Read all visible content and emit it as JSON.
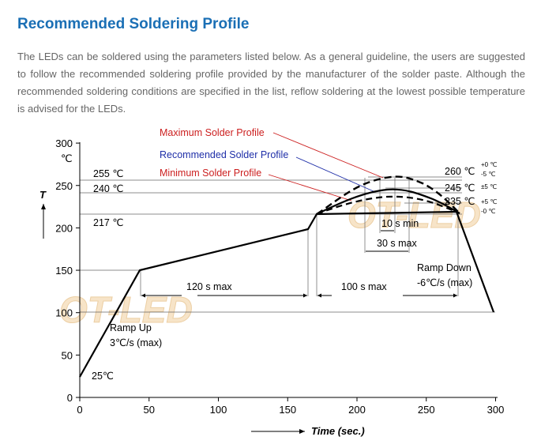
{
  "page": {
    "title": "Recommended Soldering Profile",
    "paragraph": "The LEDs can be soldered using the parameters listed below. As a general guideline, the users are suggested to follow the recommended soldering profile provided by the manufacturer of the solder paste. Although the recommended soldering conditions are specified in the list, reflow soldering at the lowest possible temperature is advised for the LEDs."
  },
  "colors": {
    "title": "#1a6fb5",
    "max_label": "#cc1f1f",
    "rec_label": "#1f2fa8",
    "min_label": "#cc1f1f"
  },
  "watermark": "OT-LED",
  "chart": {
    "y_axis_label": "T",
    "y_unit": "℃",
    "x_axis_label": "Time (sec.)",
    "x_ticks": [
      "0",
      "50",
      "100",
      "150",
      "200",
      "250",
      "300"
    ],
    "y_ticks": [
      "300",
      "250",
      "200",
      "150",
      "100",
      "50",
      "0"
    ],
    "labels": {
      "max_profile": "Maximum Solder Profile",
      "rec_profile": "Recommended Solder Profile",
      "min_profile": "Minimum Solder Profile",
      "t255": "255 ℃",
      "t240": "240 ℃",
      "t217": "217 ℃",
      "t25": "25℃",
      "t260": "260 ℃",
      "t260_plus": "+0 ℃",
      "t260_minus": "-5 ℃",
      "t245": "245 ℃",
      "t245_tol": "±5 ℃",
      "t235": "235 ℃",
      "t235_plus": "+5 ℃",
      "t235_minus": "-0 ℃",
      "ten_s_min": "10 s min",
      "thirty_s_max": "30 s max",
      "one_twenty_s_max": "120 s max",
      "hundred_s_max": "100 s max",
      "ramp_up": "Ramp Up",
      "ramp_up_rate": "3℃/s (max)",
      "ramp_down": "Ramp Down",
      "ramp_down_rate": "-6℃/s (max)"
    }
  },
  "chart_data": {
    "type": "line",
    "title": "",
    "xlabel": "Time (sec.)",
    "ylabel": "T (℃)",
    "xlim": [
      0,
      300
    ],
    "ylim": [
      0,
      300
    ],
    "x_ticks": [
      0,
      50,
      100,
      150,
      200,
      250,
      300
    ],
    "y_ticks": [
      0,
      50,
      100,
      150,
      200,
      250,
      300
    ],
    "series": [
      {
        "name": "Base profile",
        "style": "solid",
        "points": [
          [
            0,
            25
          ],
          [
            42,
            150
          ],
          [
            162,
            200
          ],
          [
            168,
            217
          ],
          [
            270,
            217
          ],
          [
            296,
            100
          ]
        ]
      },
      {
        "name": "Maximum Solder Profile",
        "style": "dashed",
        "points": [
          [
            168,
            217
          ],
          [
            188,
            240
          ],
          [
            206,
            255
          ],
          [
            218,
            260
          ],
          [
            232,
            258
          ],
          [
            250,
            245
          ],
          [
            270,
            217
          ]
        ]
      },
      {
        "name": "Recommended Solder Profile",
        "style": "solid",
        "points": [
          [
            168,
            217
          ],
          [
            190,
            232
          ],
          [
            205,
            240
          ],
          [
            218,
            245
          ],
          [
            236,
            240
          ],
          [
            270,
            217
          ]
        ]
      },
      {
        "name": "Minimum Solder Profile",
        "style": "dashed",
        "points": [
          [
            168,
            217
          ],
          [
            190,
            228
          ],
          [
            206,
            233
          ],
          [
            220,
            235
          ],
          [
            238,
            233
          ],
          [
            270,
            217
          ]
        ]
      }
    ],
    "reference_lines": [
      255,
      240,
      217,
      150,
      100
    ],
    "annotations": [
      "120 s max",
      "100 s max",
      "10 s min",
      "30 s max",
      "Ramp Up 3℃/s (max)",
      "Ramp Down -6℃/s (max)"
    ]
  }
}
